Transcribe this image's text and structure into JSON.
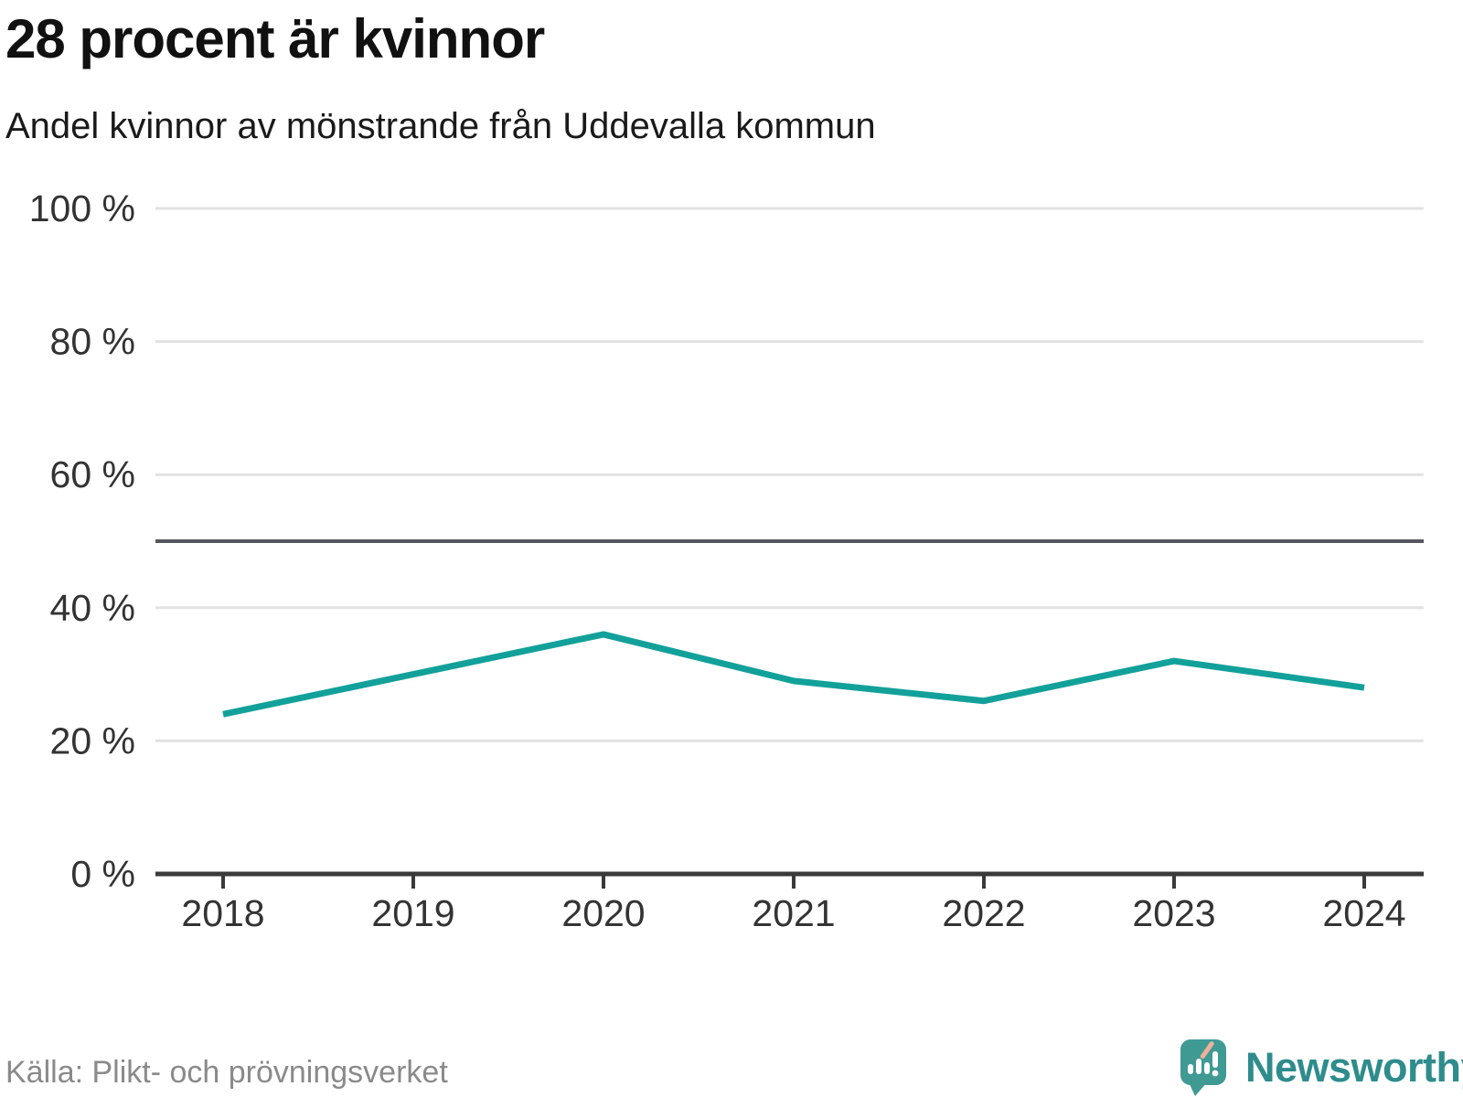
{
  "header": {
    "title": "28 procent är kvinnor",
    "subtitle": "Andel kvinnor av mönstrande från Uddevalla kommun"
  },
  "chart_data": {
    "type": "line",
    "title": "28 procent är kvinnor",
    "subtitle": "Andel kvinnor av mönstrande från Uddevalla kommun",
    "x": [
      "2018",
      "2019",
      "2020",
      "2021",
      "2022",
      "2023",
      "2024"
    ],
    "series": [
      {
        "name": "Andel kvinnor av mönstrande",
        "values": [
          24,
          30,
          36,
          29,
          26,
          32,
          28
        ]
      }
    ],
    "ylim": [
      0,
      100
    ],
    "yticks": [
      0,
      20,
      40,
      60,
      80,
      100
    ],
    "ytick_suffix": " %",
    "reference_line": 50,
    "grid": true,
    "legend": "none"
  },
  "footer": {
    "source": "Källa: Plikt- och prövningsverket",
    "brand": "Newsworthy"
  },
  "colors": {
    "line": "#12a19a",
    "grid": "#e2e2e2",
    "reference": "#56575d",
    "axis": "#3a3a3a",
    "tick_label": "#333333",
    "source_text": "#8a8a8a",
    "brand_teal": "#2e8c8c",
    "logo_teal": "#3f9a93",
    "logo_accent": "#f0b09b"
  }
}
